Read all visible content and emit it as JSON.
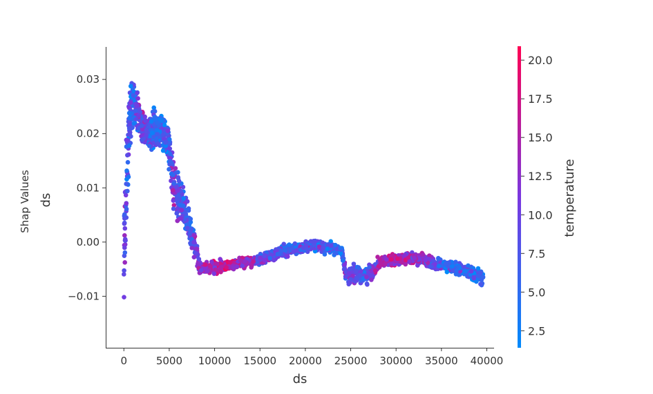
{
  "chart_data": {
    "type": "scatter",
    "title": "",
    "xlabel": "ds",
    "ylabel": "ds",
    "ylabel_outer": "Shap Values",
    "xlim": [
      -2000,
      40800
    ],
    "ylim": [
      -0.0195,
      0.036
    ],
    "x_ticks": [
      0,
      5000,
      10000,
      15000,
      20000,
      25000,
      30000,
      35000,
      40000
    ],
    "x_tick_labels": [
      "0",
      "5000",
      "10000",
      "15000",
      "20000",
      "25000",
      "30000",
      "35000",
      "40000"
    ],
    "y_ticks": [
      -0.01,
      0.0,
      0.01,
      0.02,
      0.03
    ],
    "y_tick_labels": [
      "−0.01",
      "0.00",
      "0.01",
      "0.02",
      "0.03"
    ],
    "grid": false,
    "color_feature": "temperature",
    "colorbar": {
      "label": "temperature",
      "range": [
        1.4,
        20.9
      ],
      "ticks": [
        2.5,
        5.0,
        7.5,
        10.0,
        12.5,
        15.0,
        17.5,
        20.0
      ],
      "tick_labels": [
        "2.5",
        "5.0",
        "7.5",
        "10.0",
        "12.5",
        "15.0",
        "17.5",
        "20.0"
      ],
      "colormap": [
        "#008afb",
        "#7a37e0",
        "#ff0052"
      ]
    },
    "trend": [
      {
        "x": 0,
        "y": -0.002,
        "spread": 0.012,
        "t": 8
      },
      {
        "x": 300,
        "y": 0.012,
        "spread": 0.01,
        "t": 8
      },
      {
        "x": 600,
        "y": 0.022,
        "spread": 0.008,
        "t": 7
      },
      {
        "x": 1000,
        "y": 0.026,
        "spread": 0.006,
        "t": 6
      },
      {
        "x": 1500,
        "y": 0.024,
        "spread": 0.005,
        "t": 9
      },
      {
        "x": 2000,
        "y": 0.021,
        "spread": 0.004,
        "t": 11
      },
      {
        "x": 3000,
        "y": 0.02,
        "spread": 0.005,
        "t": 7
      },
      {
        "x": 4000,
        "y": 0.021,
        "spread": 0.005,
        "t": 5
      },
      {
        "x": 5000,
        "y": 0.018,
        "spread": 0.005,
        "t": 8
      },
      {
        "x": 5500,
        "y": 0.01,
        "spread": 0.006,
        "t": 12
      },
      {
        "x": 6500,
        "y": 0.007,
        "spread": 0.005,
        "t": 7
      },
      {
        "x": 7500,
        "y": 0.001,
        "spread": 0.004,
        "t": 8
      },
      {
        "x": 8500,
        "y": -0.005,
        "spread": 0.0015,
        "t": 14
      },
      {
        "x": 12000,
        "y": -0.0042,
        "spread": 0.0012,
        "t": 16
      },
      {
        "x": 15000,
        "y": -0.0032,
        "spread": 0.0013,
        "t": 10
      },
      {
        "x": 18000,
        "y": -0.0015,
        "spread": 0.0015,
        "t": 8
      },
      {
        "x": 21000,
        "y": -0.0005,
        "spread": 0.0013,
        "t": 7
      },
      {
        "x": 24000,
        "y": -0.0015,
        "spread": 0.0013,
        "t": 6
      },
      {
        "x": 24500,
        "y": -0.006,
        "spread": 0.002,
        "t": 10
      },
      {
        "x": 27000,
        "y": -0.006,
        "spread": 0.002,
        "t": 9
      },
      {
        "x": 28500,
        "y": -0.0035,
        "spread": 0.0013,
        "t": 15
      },
      {
        "x": 32000,
        "y": -0.003,
        "spread": 0.0015,
        "t": 14
      },
      {
        "x": 36000,
        "y": -0.0045,
        "spread": 0.0015,
        "t": 6
      },
      {
        "x": 39500,
        "y": -0.0065,
        "spread": 0.0018,
        "t": 6
      }
    ]
  }
}
